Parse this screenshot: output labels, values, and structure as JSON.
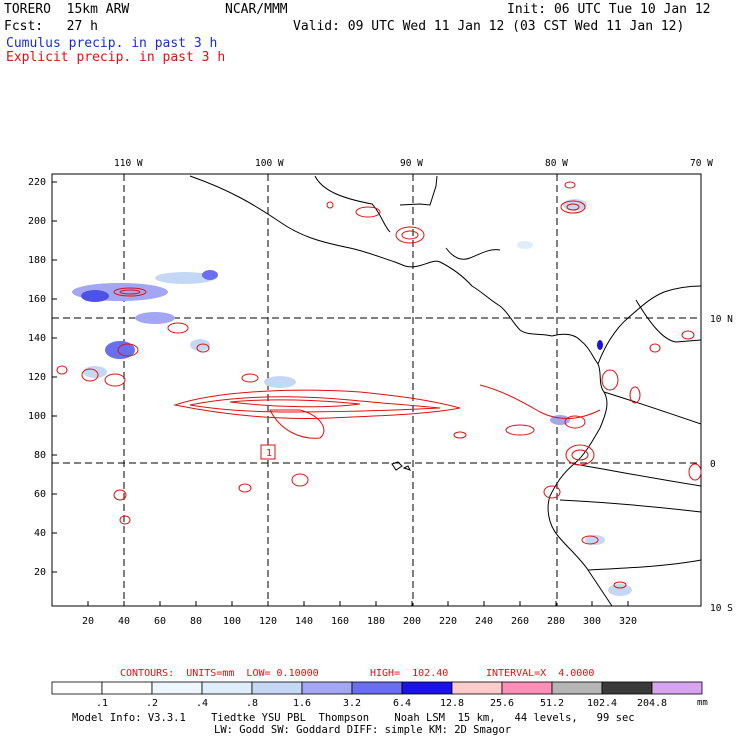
{
  "header": {
    "model": "TORERO  15km ARW",
    "org": "NCAR/MMM",
    "init": "Init: 06 UTC Tue 10 Jan 12",
    "fcst": "Fcst:   27 h",
    "valid": "Valid: 09 UTC Wed 11 Jan 12 (03 CST Wed 11 Jan 12)",
    "cumulus": "Cumulus precip. in past 3 h",
    "explicit": "Explicit precip. in past 3 h"
  },
  "map": {
    "lon_labels": [
      "110 W",
      "100 W",
      "90 W",
      "80 W",
      "70 W"
    ],
    "lat_labels": [
      "10 N",
      "0",
      "10 S"
    ],
    "y_ticks": [
      "220",
      "200",
      "180",
      "160",
      "140",
      "120",
      "100",
      "80",
      "60",
      "40",
      "20"
    ],
    "x_ticks": [
      "20",
      "40",
      "60",
      "80",
      "100",
      "120",
      "140",
      "160",
      "180",
      "200",
      "220",
      "240",
      "260",
      "280",
      "300",
      "320"
    ],
    "marker_label": "1"
  },
  "contour_info": {
    "contours": "CONTOURS:  UNITS=mm  LOW= 0.10000",
    "high": "HIGH=  102.40",
    "interval": "INTERVAL=X  4.0000"
  },
  "colorbar": {
    "labels": [
      ".1",
      ".2",
      ".4",
      ".8",
      "1.6",
      "3.2",
      "6.4",
      "12.8",
      "25.6",
      "51.2",
      "102.4",
      "204.8"
    ],
    "units": "mm",
    "colors": [
      "#ffffff",
      "#ffffff",
      "#eef6ff",
      "#ddeefa",
      "#c4d8f5",
      "#a3a6f2",
      "#6a6ef0",
      "#1a12e6",
      "#ffcccc",
      "#ff8fb8",
      "#b5b5b5",
      "#3a3a3a",
      "#d8a4f0"
    ]
  },
  "footer": {
    "line1": "Model Info: V3.3.1    Tiedtke YSU PBL  Thompson    Noah LSM  15 km,   44 levels,   99 sec",
    "line2": "LW: Godd SW: Goddard DIFF: simple KM: 2D Smagor"
  }
}
